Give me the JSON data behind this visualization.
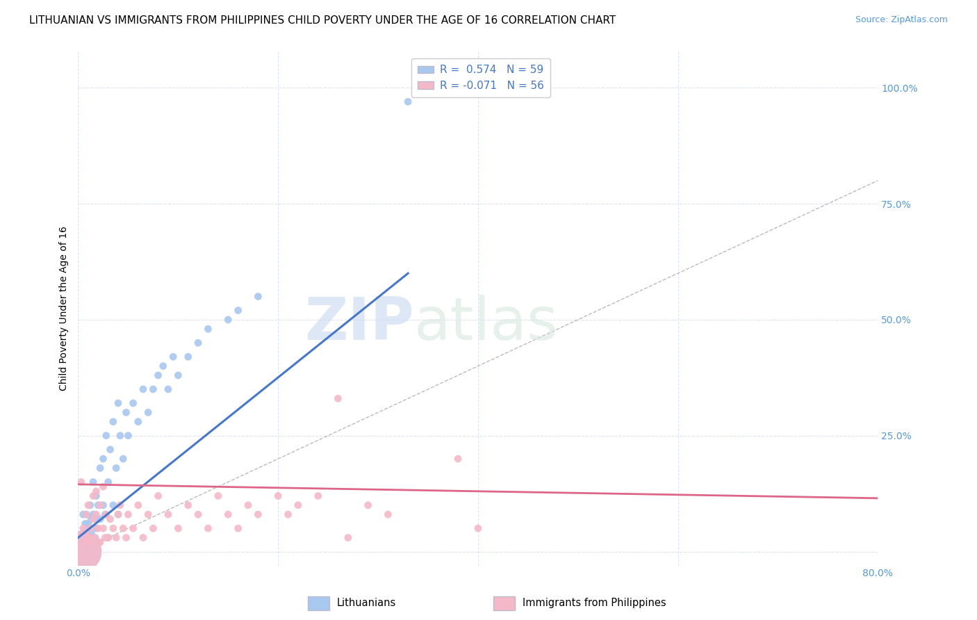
{
  "title": "LITHUANIAN VS IMMIGRANTS FROM PHILIPPINES CHILD POVERTY UNDER THE AGE OF 16 CORRELATION CHART",
  "source": "Source: ZipAtlas.com",
  "ylabel": "Child Poverty Under the Age of 16",
  "xlim": [
    0,
    0.8
  ],
  "ylim": [
    -0.03,
    1.08
  ],
  "watermark": "ZIPatlas",
  "blue_R": 0.574,
  "blue_N": 59,
  "pink_R": -0.071,
  "pink_N": 56,
  "blue_scatter_x": [
    0.005,
    0.005,
    0.005,
    0.007,
    0.007,
    0.008,
    0.008,
    0.008,
    0.01,
    0.01,
    0.012,
    0.012,
    0.013,
    0.013,
    0.015,
    0.015,
    0.015,
    0.017,
    0.017,
    0.018,
    0.018,
    0.02,
    0.02,
    0.022,
    0.022,
    0.025,
    0.025,
    0.027,
    0.028,
    0.03,
    0.03,
    0.032,
    0.035,
    0.035,
    0.038,
    0.04,
    0.04,
    0.042,
    0.045,
    0.048,
    0.05,
    0.055,
    0.06,
    0.065,
    0.07,
    0.075,
    0.08,
    0.085,
    0.09,
    0.095,
    0.1,
    0.11,
    0.12,
    0.13,
    0.15,
    0.16,
    0.18,
    0.33,
    0.003
  ],
  "blue_scatter_y": [
    0.02,
    0.04,
    0.08,
    0.03,
    0.06,
    0.02,
    0.05,
    0.08,
    0.02,
    0.06,
    0.03,
    0.1,
    0.04,
    0.07,
    0.02,
    0.08,
    0.15,
    0.03,
    0.07,
    0.05,
    0.12,
    0.02,
    0.1,
    0.07,
    0.18,
    0.1,
    0.2,
    0.08,
    0.25,
    0.03,
    0.15,
    0.22,
    0.1,
    0.28,
    0.18,
    0.08,
    0.32,
    0.25,
    0.2,
    0.3,
    0.25,
    0.32,
    0.28,
    0.35,
    0.3,
    0.35,
    0.38,
    0.4,
    0.35,
    0.42,
    0.38,
    0.42,
    0.45,
    0.48,
    0.5,
    0.52,
    0.55,
    0.97,
    0.0
  ],
  "blue_scatter_size": [
    60,
    60,
    60,
    60,
    60,
    60,
    60,
    60,
    60,
    60,
    60,
    60,
    60,
    60,
    60,
    60,
    60,
    60,
    60,
    60,
    60,
    60,
    60,
    60,
    60,
    60,
    60,
    60,
    60,
    60,
    60,
    60,
    60,
    60,
    60,
    60,
    60,
    60,
    60,
    60,
    60,
    60,
    60,
    60,
    60,
    60,
    60,
    60,
    60,
    60,
    60,
    60,
    60,
    60,
    60,
    60,
    60,
    60,
    1800
  ],
  "pink_scatter_x": [
    0.003,
    0.005,
    0.007,
    0.008,
    0.01,
    0.01,
    0.012,
    0.013,
    0.015,
    0.015,
    0.017,
    0.018,
    0.018,
    0.02,
    0.022,
    0.022,
    0.025,
    0.025,
    0.027,
    0.028,
    0.03,
    0.032,
    0.035,
    0.038,
    0.04,
    0.042,
    0.045,
    0.048,
    0.05,
    0.055,
    0.06,
    0.065,
    0.07,
    0.075,
    0.08,
    0.09,
    0.1,
    0.11,
    0.12,
    0.13,
    0.14,
    0.15,
    0.16,
    0.17,
    0.18,
    0.2,
    0.21,
    0.22,
    0.24,
    0.26,
    0.27,
    0.29,
    0.31,
    0.38,
    0.4,
    0.003
  ],
  "pink_scatter_y": [
    0.15,
    0.05,
    0.02,
    0.08,
    0.03,
    0.1,
    0.05,
    0.02,
    0.07,
    0.12,
    0.03,
    0.08,
    0.13,
    0.05,
    0.02,
    0.1,
    0.05,
    0.14,
    0.03,
    0.08,
    0.03,
    0.07,
    0.05,
    0.03,
    0.08,
    0.1,
    0.05,
    0.03,
    0.08,
    0.05,
    0.1,
    0.03,
    0.08,
    0.05,
    0.12,
    0.08,
    0.05,
    0.1,
    0.08,
    0.05,
    0.12,
    0.08,
    0.05,
    0.1,
    0.08,
    0.12,
    0.08,
    0.1,
    0.12,
    0.33,
    0.03,
    0.1,
    0.08,
    0.2,
    0.05,
    0.0
  ],
  "pink_scatter_size": [
    60,
    60,
    60,
    60,
    60,
    60,
    60,
    60,
    60,
    60,
    60,
    60,
    60,
    60,
    60,
    60,
    60,
    60,
    60,
    60,
    60,
    60,
    60,
    60,
    60,
    60,
    60,
    60,
    60,
    60,
    60,
    60,
    60,
    60,
    60,
    60,
    60,
    60,
    60,
    60,
    60,
    60,
    60,
    60,
    60,
    60,
    60,
    60,
    60,
    60,
    60,
    60,
    60,
    60,
    60,
    1800
  ],
  "blue_color": "#a8c8f0",
  "pink_color": "#f5b8c8",
  "blue_line_color": "#4477cc",
  "pink_line_color": "#dd6688",
  "diagonal_color": "#bbbbbb",
  "grid_color": "#dde4f0",
  "background_color": "#ffffff",
  "title_fontsize": 11,
  "axis_label_fontsize": 10,
  "tick_fontsize": 10,
  "legend_fontsize": 11,
  "blue_line_x": [
    0.0,
    0.33
  ],
  "blue_line_y": [
    0.03,
    0.6
  ],
  "pink_line_x": [
    0.0,
    0.8
  ],
  "pink_line_y": [
    0.145,
    0.115
  ]
}
